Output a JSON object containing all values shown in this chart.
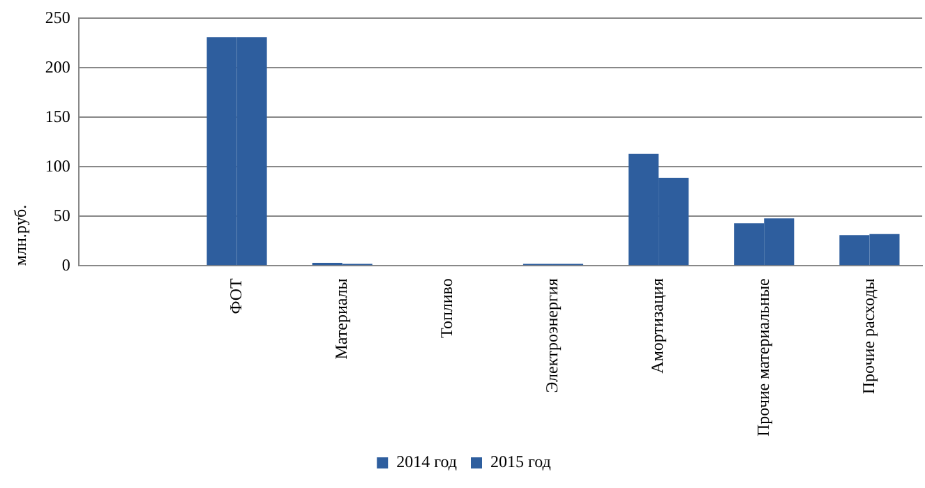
{
  "chart_data": {
    "type": "bar",
    "ylabel": "млн.руб.",
    "categories": [
      null,
      "ФОТ",
      "Материалы",
      "Топливо",
      "Электроэнергия",
      "Амортизация",
      "Прочие материальные",
      "Прочие расходы"
    ],
    "series": [
      {
        "name": "2014 год",
        "color": "#2e5e9e",
        "values": [
          null,
          231,
          3,
          0,
          2,
          113,
          43,
          31
        ]
      },
      {
        "name": "2015 год",
        "color": "#2e5e9e",
        "values": [
          null,
          231,
          2,
          0,
          2,
          89,
          48,
          32
        ]
      }
    ],
    "ylim": [
      0,
      250
    ],
    "yticks": [
      0,
      50,
      100,
      150,
      200,
      250
    ],
    "grid": "y",
    "legend": "bottom"
  }
}
